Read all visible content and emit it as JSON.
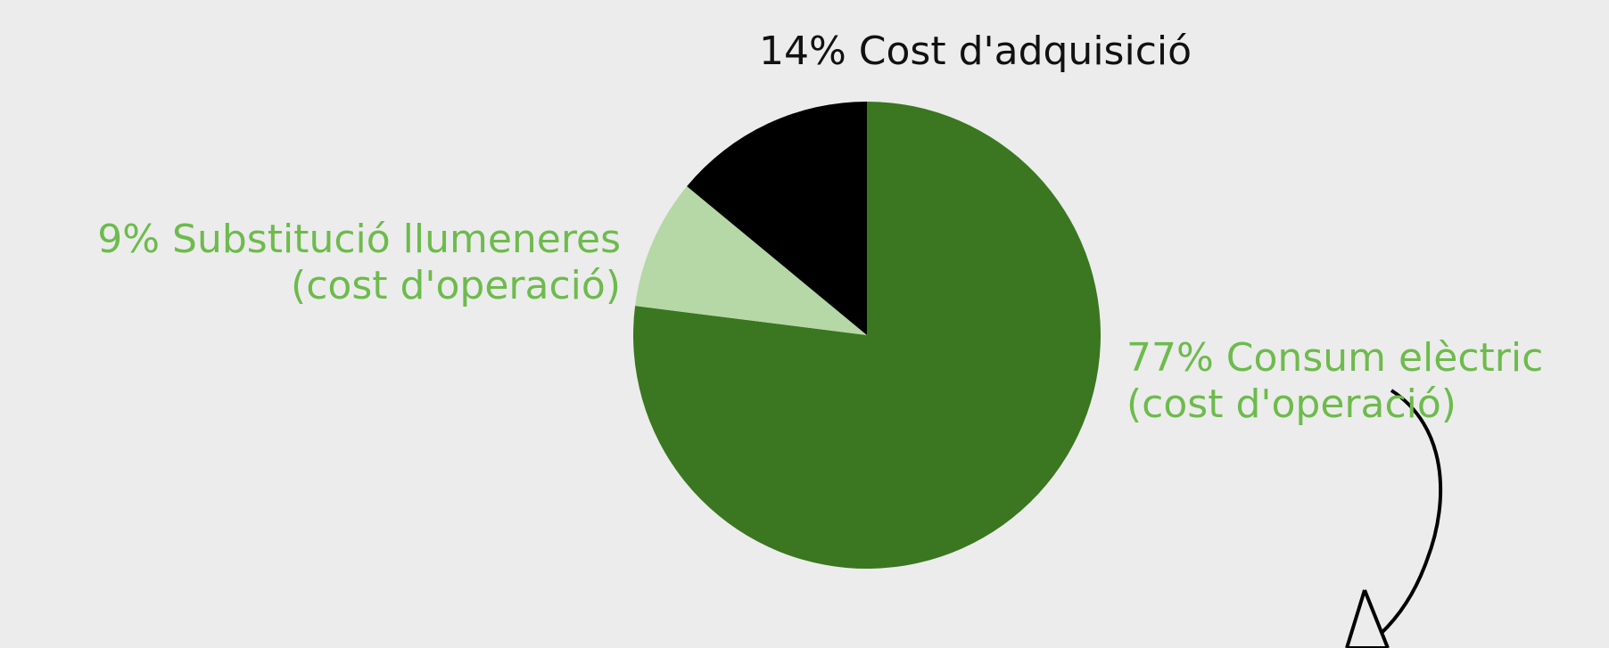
{
  "chart_data": {
    "type": "pie",
    "start_angle_deg": 0,
    "direction": "clockwise",
    "slices": [
      {
        "label": "Consum elèctric",
        "sub": "(cost d'operació)",
        "value": 77,
        "pct_text": "77%",
        "color": "#3a7720",
        "text_color": "#6dbb4c"
      },
      {
        "label": "Substitució llumeneres",
        "sub": "(cost d'operació)",
        "value": 9,
        "pct_text": "9%",
        "color": "#b5d8a6",
        "text_color": "#6dbb4c"
      },
      {
        "label": "Cost d'adquisició",
        "value": 14,
        "pct_text": "14%",
        "color": "#000000",
        "text_color": "#111111"
      }
    ]
  },
  "labels": {
    "acquisition": "14% Cost d'adquisició",
    "substitution_line1": "9% Substitució llumeneres",
    "substitution_line2": "(cost d'operació)",
    "consumption_line1": "77% Consum elèctric",
    "consumption_line2": "(cost d'operació)"
  }
}
